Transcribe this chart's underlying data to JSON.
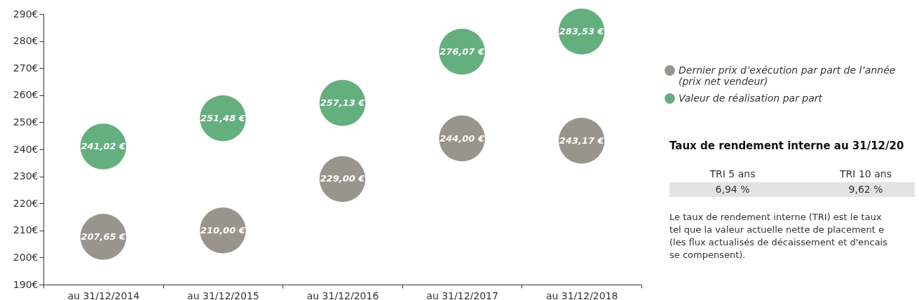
{
  "chart_data": [
    {
      "type": "scatter",
      "categories": [
        "au 31/12/2014",
        "au 31/12/2015",
        "au 31/12/2016",
        "au 31/12/2017",
        "au 31/12/2018"
      ],
      "series": [
        {
          "name": "Dernier prix d’exécution par part de l’année (prix net vendeur)",
          "color": "#99958c",
          "values": [
            207.65,
            210.0,
            229.0,
            244.0,
            243.17
          ],
          "value_labels": [
            "207,65 €",
            "210,00 €",
            "229,00 €",
            "244,00 €",
            "243,17 €"
          ]
        },
        {
          "name": "Valeur de réalisation par part",
          "color": "#63b07e",
          "values": [
            241.02,
            251.48,
            257.13,
            276.07,
            283.53
          ],
          "value_labels": [
            "241,02 €",
            "251,48 €",
            "257,13 €",
            "276,07 €",
            "283,53 €"
          ]
        }
      ],
      "ylim": [
        190,
        290
      ],
      "yticks": [
        {
          "value": 190,
          "label": "190€"
        },
        {
          "value": 200,
          "label": "200€"
        },
        {
          "value": 210,
          "label": "210€"
        },
        {
          "value": 220,
          "label": "220€"
        },
        {
          "value": 230,
          "label": "230€"
        },
        {
          "value": 240,
          "label": "240€"
        },
        {
          "value": 250,
          "label": "250€"
        },
        {
          "value": 260,
          "label": "260€"
        },
        {
          "value": 270,
          "label": "270€"
        },
        {
          "value": 280,
          "label": "280€"
        },
        {
          "value": 290,
          "label": "290€"
        }
      ],
      "marker": "circle",
      "legend": "right",
      "grid": false
    },
    {
      "type": "other",
      "title": "Taux de rendement interne au 31/12/20",
      "categories": [
        "TRI 5 ans",
        "TRI 10 ans"
      ],
      "values": [
        6.94,
        9.62
      ],
      "value_labels": [
        "6,94 %",
        "9,62 %"
      ],
      "annotations": [
        "Le taux de rendement interne (TRI) est le taux",
        "tel que la valeur actuelle nette de placement e",
        "(les flux actualisés de décaissement et d'encais",
        "se compensent)."
      ]
    }
  ]
}
